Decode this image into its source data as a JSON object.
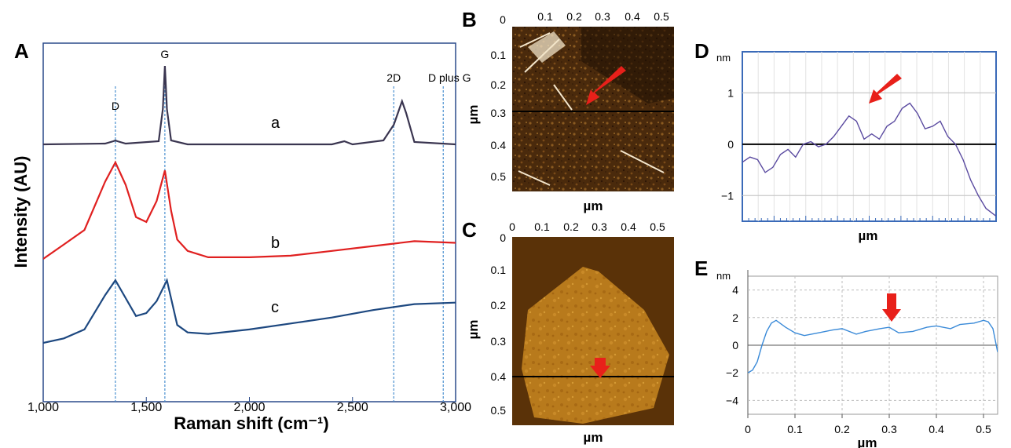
{
  "panels": {
    "A": "A",
    "B": "B",
    "C": "C",
    "D": "D",
    "E": "E"
  },
  "colors": {
    "curve_a": "#3a3550",
    "curve_b": "#e02020",
    "curve_c": "#1d4880",
    "frame": "#2a4a8a",
    "peak_line": "#4a90d0",
    "profile_d": "#5a4aa0",
    "profile_e": "#3a8ad8",
    "arrow": "#e8201a"
  },
  "chart_data": [
    {
      "type": "line",
      "panel": "A",
      "xlabel": "Raman shift (cm⁻¹)",
      "ylabel": "Intensity (AU)",
      "xlim": [
        1000,
        3000
      ],
      "x_ticks": [
        1000,
        1500,
        2000,
        2500,
        3000
      ],
      "x_tick_labels": [
        "1,000",
        "1,500",
        "2,000",
        "2,500",
        "3,000"
      ],
      "peak_markers": [
        {
          "label": "D",
          "x": 1350
        },
        {
          "label": "G",
          "x": 1590
        },
        {
          "label": "2D",
          "x": 2700
        },
        {
          "label": "D plus G",
          "x": 2940
        }
      ],
      "series": [
        {
          "name": "a",
          "x": [
            1000,
            1300,
            1340,
            1350,
            1360,
            1400,
            1560,
            1580,
            1590,
            1600,
            1620,
            1700,
            2400,
            2460,
            2500,
            2650,
            2700,
            2740,
            2760,
            2800,
            3000
          ],
          "y": [
            0.0,
            0.01,
            0.04,
            0.05,
            0.04,
            0.01,
            0.04,
            0.45,
            1.0,
            0.45,
            0.05,
            0.0,
            0.0,
            0.04,
            0.0,
            0.05,
            0.25,
            0.55,
            0.4,
            0.03,
            0.0
          ]
        },
        {
          "name": "b",
          "x": [
            1000,
            1100,
            1200,
            1300,
            1350,
            1400,
            1450,
            1500,
            1550,
            1590,
            1620,
            1650,
            1700,
            1800,
            2000,
            2200,
            2400,
            2600,
            2800,
            3000
          ],
          "y": [
            0.0,
            0.09,
            0.18,
            0.48,
            0.6,
            0.46,
            0.26,
            0.23,
            0.36,
            0.55,
            0.3,
            0.12,
            0.05,
            0.01,
            0.01,
            0.02,
            0.05,
            0.08,
            0.11,
            0.1
          ]
        },
        {
          "name": "c",
          "x": [
            1000,
            1100,
            1200,
            1300,
            1350,
            1400,
            1450,
            1500,
            1550,
            1600,
            1650,
            1700,
            1800,
            2000,
            2200,
            2400,
            2600,
            2800,
            3000
          ],
          "y": [
            0.0,
            0.03,
            0.09,
            0.32,
            0.42,
            0.3,
            0.18,
            0.2,
            0.28,
            0.42,
            0.12,
            0.07,
            0.06,
            0.09,
            0.13,
            0.17,
            0.22,
            0.26,
            0.27
          ]
        }
      ]
    },
    {
      "type": "line",
      "panel": "D",
      "unit": "nm",
      "xlabel": "µm",
      "ylim": [
        -1.5,
        1.8
      ],
      "y_ticks": [
        1,
        0,
        -1
      ],
      "y_tick_labels": [
        "1",
        "0",
        "−1"
      ],
      "series": [
        {
          "name": "",
          "x": [
            0,
            0.03,
            0.06,
            0.09,
            0.12,
            0.15,
            0.18,
            0.21,
            0.24,
            0.27,
            0.3,
            0.33,
            0.36,
            0.39,
            0.42,
            0.45,
            0.48,
            0.51,
            0.54,
            0.57,
            0.6,
            0.63,
            0.66,
            0.69,
            0.72,
            0.75,
            0.78,
            0.81,
            0.84,
            0.87,
            0.9,
            0.93,
            0.96,
            1.0
          ],
          "y": [
            -0.35,
            -0.25,
            -0.3,
            -0.55,
            -0.45,
            -0.2,
            -0.1,
            -0.25,
            0.0,
            0.05,
            -0.05,
            0.0,
            0.15,
            0.35,
            0.55,
            0.45,
            0.1,
            0.2,
            0.1,
            0.35,
            0.45,
            0.7,
            0.8,
            0.6,
            0.3,
            0.35,
            0.45,
            0.15,
            0.0,
            -0.3,
            -0.7,
            -1.0,
            -1.25,
            -1.4
          ]
        }
      ]
    },
    {
      "type": "line",
      "panel": "E",
      "unit": "nm",
      "xlabel": "µm",
      "xlim": [
        0,
        0.53
      ],
      "ylim": [
        -5,
        5
      ],
      "x_ticks": [
        0,
        0.1,
        0.2,
        0.3,
        0.4,
        0.5
      ],
      "x_tick_labels": [
        "0",
        "0.1",
        "0.2",
        "0.3",
        "0.4",
        "0.5"
      ],
      "y_ticks": [
        4,
        2,
        0,
        -2,
        -4
      ],
      "y_tick_labels": [
        "4",
        "2",
        "0",
        "−2",
        "−4"
      ],
      "series": [
        {
          "name": "",
          "x": [
            0,
            0.01,
            0.02,
            0.03,
            0.04,
            0.05,
            0.06,
            0.08,
            0.1,
            0.12,
            0.15,
            0.18,
            0.2,
            0.23,
            0.25,
            0.28,
            0.3,
            0.32,
            0.35,
            0.38,
            0.4,
            0.43,
            0.45,
            0.48,
            0.5,
            0.51,
            0.52,
            0.53
          ],
          "y": [
            -2.0,
            -1.8,
            -1.2,
            0.0,
            1.0,
            1.6,
            1.8,
            1.3,
            0.9,
            0.7,
            0.9,
            1.1,
            1.2,
            0.8,
            1.0,
            1.2,
            1.3,
            0.9,
            1.0,
            1.3,
            1.4,
            1.2,
            1.5,
            1.6,
            1.8,
            1.7,
            1.2,
            -0.5
          ]
        }
      ]
    }
  ],
  "panel_b": {
    "x_ticks": [
      "0.1",
      "0.2",
      "0.3",
      "0.4",
      "0.5"
    ],
    "x_origin": "0",
    "y_ticks": [
      "0.1",
      "0.2",
      "0.3",
      "0.4",
      "0.5"
    ],
    "y_label": "µm",
    "x_label": "µm"
  },
  "panel_c": {
    "x_ticks": [
      "0",
      "0.1",
      "0.2",
      "0.3",
      "0.4",
      "0.5"
    ],
    "y_ticks": [
      "0",
      "0.1",
      "0.2",
      "0.3",
      "0.4",
      "0.5"
    ],
    "y_label": "µm",
    "x_label": "µm"
  }
}
